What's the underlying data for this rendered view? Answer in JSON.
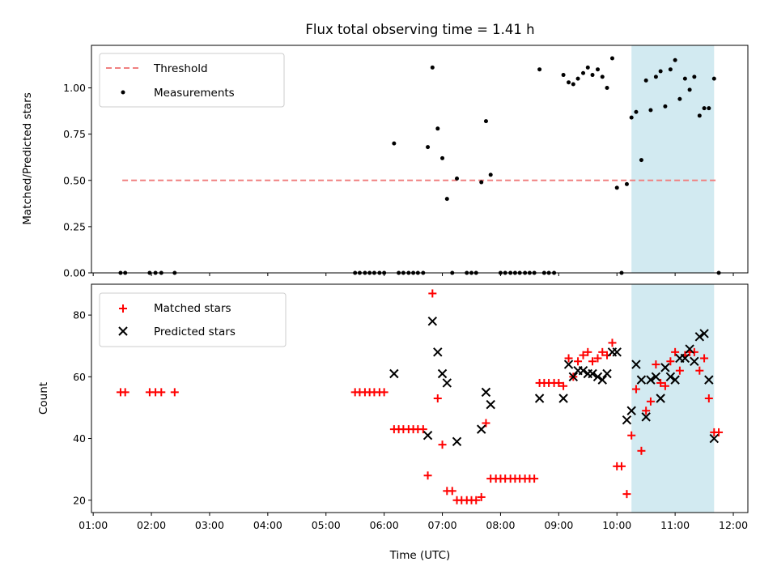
{
  "chart_data": [
    {
      "type": "scatter",
      "title": "Flux total observing time = 1.41 h",
      "ylabel": "Matched/Predicted stars",
      "xlim": [
        0.97,
        12.25
      ],
      "ylim": [
        0.0,
        1.23
      ],
      "y_ticks": [
        0.0,
        0.25,
        0.5,
        0.75,
        1.0
      ],
      "y_tick_labels": [
        "0.00",
        "0.25",
        "0.50",
        "0.75",
        "1.00"
      ],
      "highlight_span_hours": [
        10.25,
        11.67
      ],
      "legend": "top-left",
      "colors": {
        "threshold": "#f08080",
        "measurements": "#000000",
        "span": "#add8e6"
      },
      "series": [
        {
          "name": "Threshold",
          "style": "dashed-line",
          "x": [
            1.5,
            11.75
          ],
          "y": [
            0.5,
            0.5
          ]
        },
        {
          "name": "Measurements",
          "style": "dot",
          "x": [
            1.47,
            1.55,
            1.97,
            2.07,
            2.17,
            2.4,
            5.5,
            5.58,
            5.67,
            5.75,
            5.83,
            5.92,
            6.0,
            6.17,
            6.25,
            6.33,
            6.42,
            6.5,
            6.58,
            6.67,
            6.75,
            6.83,
            6.92,
            7.0,
            7.08,
            7.17,
            7.25,
            7.42,
            7.5,
            7.58,
            7.67,
            7.75,
            7.83,
            8.0,
            8.08,
            8.17,
            8.25,
            8.33,
            8.42,
            8.5,
            8.58,
            8.67,
            8.75,
            8.83,
            8.92,
            9.08,
            9.17,
            9.25,
            9.33,
            9.42,
            9.5,
            9.58,
            9.67,
            9.75,
            9.83,
            9.92,
            10.0,
            10.08,
            10.17,
            10.25,
            10.33,
            10.42,
            10.5,
            10.58,
            10.67,
            10.75,
            10.83,
            10.92,
            11.0,
            11.08,
            11.17,
            11.25,
            11.33,
            11.42,
            11.5,
            11.58,
            11.67,
            11.75
          ],
          "y": [
            0.0,
            0.0,
            0.0,
            0.0,
            0.0,
            0.0,
            0.0,
            0.0,
            0.0,
            0.0,
            0.0,
            0.0,
            0.0,
            0.7,
            0.0,
            0.0,
            0.0,
            0.0,
            0.0,
            0.0,
            0.68,
            1.11,
            0.78,
            0.62,
            0.4,
            0.0,
            0.51,
            0.0,
            0.0,
            0.0,
            0.49,
            0.82,
            0.53,
            0.0,
            0.0,
            0.0,
            0.0,
            0.0,
            0.0,
            0.0,
            0.0,
            1.1,
            0.0,
            0.0,
            0.0,
            1.07,
            1.03,
            1.02,
            1.05,
            1.08,
            1.11,
            1.07,
            1.1,
            1.06,
            1.0,
            1.16,
            0.46,
            0.0,
            0.48,
            0.84,
            0.87,
            0.61,
            1.04,
            0.88,
            1.06,
            1.09,
            0.9,
            1.1,
            1.15,
            0.94,
            1.05,
            0.99,
            1.06,
            0.85,
            0.89,
            0.89,
            1.05,
            0.0
          ]
        }
      ]
    },
    {
      "type": "scatter",
      "xlabel": "Time (UTC)",
      "ylabel": "Count",
      "xlim": [
        0.97,
        12.25
      ],
      "ylim": [
        16,
        90
      ],
      "y_ticks": [
        20,
        40,
        60,
        80
      ],
      "y_tick_labels": [
        "20",
        "40",
        "60",
        "80"
      ],
      "x_ticks": [
        1,
        2,
        3,
        4,
        5,
        6,
        7,
        8,
        9,
        10,
        11,
        12
      ],
      "x_tick_labels": [
        "01:00",
        "02:00",
        "03:00",
        "04:00",
        "05:00",
        "06:00",
        "07:00",
        "08:00",
        "09:00",
        "10:00",
        "11:00",
        "12:00"
      ],
      "highlight_span_hours": [
        10.25,
        11.67
      ],
      "legend": "top-left",
      "colors": {
        "matched": "#ff0000",
        "predicted": "#000000",
        "span": "#add8e6"
      },
      "series": [
        {
          "name": "Matched stars",
          "marker": "plus",
          "x": [
            1.47,
            1.55,
            1.97,
            2.07,
            2.17,
            2.4,
            5.5,
            5.58,
            5.67,
            5.75,
            5.83,
            5.92,
            6.0,
            6.17,
            6.25,
            6.33,
            6.42,
            6.5,
            6.58,
            6.67,
            6.75,
            6.83,
            6.92,
            7.0,
            7.08,
            7.17,
            7.25,
            7.33,
            7.42,
            7.5,
            7.58,
            7.67,
            7.75,
            7.83,
            7.92,
            8.0,
            8.08,
            8.17,
            8.25,
            8.33,
            8.42,
            8.5,
            8.58,
            8.67,
            8.75,
            8.83,
            8.92,
            9.0,
            9.08,
            9.17,
            9.25,
            9.33,
            9.42,
            9.5,
            9.58,
            9.67,
            9.75,
            9.83,
            9.92,
            10.0,
            10.08,
            10.17,
            10.25,
            10.33,
            10.42,
            10.5,
            10.58,
            10.67,
            10.75,
            10.83,
            10.92,
            11.0,
            11.08,
            11.17,
            11.25,
            11.33,
            11.42,
            11.5,
            11.58,
            11.67,
            11.75
          ],
          "y": [
            55,
            55,
            55,
            55,
            55,
            55,
            55,
            55,
            55,
            55,
            55,
            55,
            55,
            43,
            43,
            43,
            43,
            43,
            43,
            43,
            28,
            87,
            53,
            38,
            23,
            23,
            20,
            20,
            20,
            20,
            20,
            21,
            45,
            27,
            27,
            27,
            27,
            27,
            27,
            27,
            27,
            27,
            27,
            58,
            58,
            58,
            58,
            58,
            57,
            66,
            60,
            65,
            67,
            68,
            65,
            66,
            68,
            67,
            71,
            31,
            31,
            22,
            41,
            56,
            36,
            49,
            52,
            64,
            58,
            57,
            65,
            68,
            62,
            67,
            68,
            68,
            62,
            66,
            53,
            42,
            42
          ]
        },
        {
          "name": "Predicted stars",
          "marker": "x",
          "x": [
            6.17,
            6.75,
            6.83,
            6.92,
            7.0,
            7.08,
            7.25,
            7.67,
            7.75,
            7.83,
            8.67,
            9.08,
            9.17,
            9.25,
            9.33,
            9.42,
            9.5,
            9.58,
            9.67,
            9.75,
            9.83,
            9.92,
            10.0,
            10.17,
            10.25,
            10.33,
            10.42,
            10.5,
            10.58,
            10.67,
            10.75,
            10.83,
            10.92,
            11.0,
            11.08,
            11.17,
            11.25,
            11.33,
            11.42,
            11.5,
            11.58,
            11.67
          ],
          "y": [
            61,
            41,
            78,
            68,
            61,
            58,
            39,
            43,
            55,
            51,
            53,
            53,
            64,
            60,
            62,
            62,
            61,
            61,
            60,
            59,
            61,
            68,
            68,
            46,
            49,
            64,
            59,
            47,
            59,
            60,
            53,
            63,
            60,
            59,
            66,
            66,
            69,
            65,
            73,
            74,
            59,
            40
          ]
        }
      ]
    }
  ]
}
